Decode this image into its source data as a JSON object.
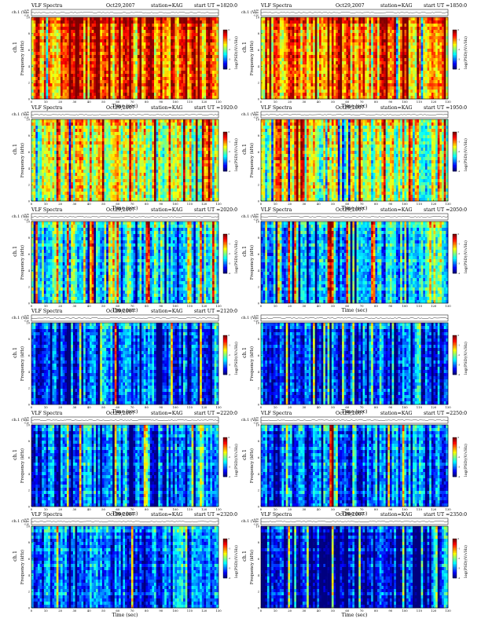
{
  "chart_data": [
    {
      "type": "heatmap",
      "title": "VLF Spectra",
      "date": "Oct29,2007",
      "station": "station=KAG",
      "start": "start  UT  =1820:0",
      "xlabel": "Time  (sec)",
      "ylabel": "Frequency  (kHz)",
      "top_ylabel": "ch.1 (V)",
      "top_ticks": [
        "0.30",
        "0.00",
        "-0.30"
      ],
      "side_label": "ch.1",
      "cbar_label": "log(PSD)(V/√Hz)",
      "xlim": [
        0,
        130
      ],
      "ylim": [
        0,
        10
      ],
      "xticks": [
        0,
        10,
        20,
        30,
        40,
        50,
        60,
        70,
        80,
        90,
        100,
        110,
        120,
        130
      ],
      "yticks": [
        0,
        2,
        4,
        6,
        8,
        10
      ],
      "cbar_ticks": [
        "0",
        "-1",
        "-2",
        "-3",
        "-4"
      ],
      "intensity": 0.78,
      "band_contrast": 0.45,
      "spikes": [
        [
          0.02,
          0.6
        ],
        [
          0.35,
          0.8
        ],
        [
          0.58,
          0.7
        ],
        [
          0.75,
          0.6
        ]
      ],
      "seed": 3
    },
    {
      "type": "heatmap",
      "title": "VLF Spectra",
      "date": "Oct29,2007",
      "station": "station=KAG",
      "start": "start  UT  =1850:0",
      "xlabel": "Time  (sec)",
      "ylabel": "Frequency  (kHz)",
      "top_ylabel": "ch.1 (V)",
      "top_ticks": [
        "0.30",
        "0.00",
        "-0.30"
      ],
      "side_label": "ch.1",
      "cbar_label": "log(PSD)(V/√Hz)",
      "xlim": [
        0,
        130
      ],
      "ylim": [
        0,
        10
      ],
      "xticks": [
        0,
        10,
        20,
        30,
        40,
        50,
        60,
        70,
        80,
        90,
        100,
        110,
        120,
        130
      ],
      "yticks": [
        0,
        2,
        4,
        6,
        8,
        10
      ],
      "cbar_ticks": [
        "0",
        "-1",
        "-2",
        "-3",
        "-4"
      ],
      "intensity": 0.74,
      "band_contrast": 0.45,
      "spikes": [
        [
          0.02,
          0.6
        ],
        [
          0.4,
          0.5
        ],
        [
          0.6,
          0.4
        ]
      ],
      "seed": 7
    },
    {
      "type": "heatmap",
      "title": "VLF Spectra",
      "date": "Oct29,2007",
      "station": "station=KAG",
      "start": "start  UT  =1920:0",
      "xlabel": "Time  (sec)",
      "ylabel": "Frequency  (kHz)",
      "top_ylabel": "ch.1 (V)",
      "top_ticks": [
        "0.30",
        "0.00",
        "-0.30"
      ],
      "side_label": "ch.1",
      "cbar_label": "log(PSD)(V/√Hz)",
      "xlim": [
        0,
        130
      ],
      "ylim": [
        0,
        10
      ],
      "xticks": [
        0,
        10,
        20,
        30,
        40,
        50,
        60,
        70,
        80,
        90,
        100,
        110,
        120,
        130
      ],
      "yticks": [
        0,
        2,
        4,
        6,
        8,
        10
      ],
      "cbar_ticks": [
        "0",
        "-1",
        "-2",
        "-3",
        "-4"
      ],
      "intensity": 0.58,
      "band_contrast": 0.5,
      "spikes": [
        [
          0.18,
          0.5
        ],
        [
          0.46,
          0.4
        ]
      ],
      "seed": 11
    },
    {
      "type": "heatmap",
      "title": "VLF Spectra",
      "date": "Oct29,2007",
      "station": "station=KAG",
      "start": "start  UT  =1950:0",
      "xlabel": "Time  (sec)",
      "ylabel": "Frequency  (kHz)",
      "top_ylabel": "ch.1 (V)",
      "top_ticks": [
        "0.30",
        "0.00",
        "-0.30"
      ],
      "side_label": "ch.1",
      "cbar_label": "log(PSD)(V/√Hz)",
      "xlim": [
        0,
        130
      ],
      "ylim": [
        0,
        10
      ],
      "xticks": [
        0,
        10,
        20,
        30,
        40,
        50,
        60,
        70,
        80,
        90,
        100,
        110,
        120,
        130
      ],
      "yticks": [
        0,
        2,
        4,
        6,
        8,
        10
      ],
      "cbar_ticks": [
        "0",
        "-1",
        "-2",
        "-3",
        "-4"
      ],
      "intensity": 0.56,
      "band_contrast": 0.5,
      "spikes": [
        [
          0.22,
          0.5
        ],
        [
          0.78,
          0.4
        ]
      ],
      "seed": 13
    },
    {
      "type": "heatmap",
      "title": "VLF Spectra",
      "date": "Oct29,2007",
      "station": "station=KAG",
      "start": "start  UT  =2020:0",
      "xlabel": "Time  (sec)",
      "ylabel": "Frequency  (kHz)",
      "top_ylabel": "ch.1 (V)",
      "top_ticks": [
        "0.30",
        "0.00",
        "-0.30"
      ],
      "side_label": "ch.1",
      "cbar_label": "log(PSD)(V/√Hz)",
      "xlim": [
        0,
        130
      ],
      "ylim": [
        0,
        10
      ],
      "xticks": [
        0,
        10,
        20,
        30,
        40,
        50,
        60,
        70,
        80,
        90,
        100,
        110,
        120,
        130
      ],
      "yticks": [
        0,
        2,
        4,
        6,
        8,
        10
      ],
      "cbar_ticks": [
        "0",
        "-1",
        "-2",
        "-3",
        "-4"
      ],
      "intensity": 0.38,
      "band_contrast": 0.55,
      "spikes": [
        [
          0.31,
          0.5
        ],
        [
          0.62,
          0.9
        ],
        [
          0.84,
          0.5
        ]
      ],
      "seed": 17
    },
    {
      "type": "heatmap",
      "title": "VLF Spectra",
      "date": "Oct29,2007",
      "station": "station=KAG",
      "start": "start  UT  =2050:0",
      "xlabel": "Time  (sec)",
      "ylabel": "Frequency  (kHz)",
      "top_ylabel": "ch.1 (V)",
      "top_ticks": [
        "0.30",
        "0.00",
        "-0.30"
      ],
      "side_label": "ch.1",
      "cbar_label": "log(PSD)(V/√Hz)",
      "xlim": [
        0,
        130
      ],
      "ylim": [
        0,
        10
      ],
      "xticks": [
        0,
        10,
        20,
        30,
        40,
        50,
        60,
        70,
        80,
        90,
        100,
        110,
        120,
        130
      ],
      "yticks": [
        0,
        2,
        4,
        6,
        8,
        10
      ],
      "cbar_ticks": [
        "0",
        "-1",
        "-2",
        "-3",
        "-4"
      ],
      "intensity": 0.36,
      "band_contrast": 0.55,
      "spikes": [
        [
          0.36,
          1.0
        ],
        [
          0.66,
          0.4
        ]
      ],
      "seed": 19
    },
    {
      "type": "heatmap",
      "title": "VLF Spectra",
      "date": "Oct29,2007",
      "station": "station=KAG",
      "start": "start  UT  =2120:0",
      "xlabel": "Time  (sec)",
      "ylabel": "Frequency  (kHz)",
      "top_ylabel": "ch.1 (V)",
      "top_ticks": [
        "0.30",
        "0.00",
        "-0.30"
      ],
      "side_label": "ch.1",
      "cbar_label": "log(PSD)(V/√Hz)",
      "xlim": [
        0,
        130
      ],
      "ylim": [
        0,
        10
      ],
      "xticks": [
        0,
        10,
        20,
        30,
        40,
        50,
        60,
        70,
        80,
        90,
        100,
        110,
        120,
        130
      ],
      "yticks": [
        0,
        2,
        4,
        6,
        8,
        10
      ],
      "cbar_ticks": [
        "0",
        "-1",
        "-2",
        "-3",
        "-4"
      ],
      "intensity": 0.22,
      "band_contrast": 0.4,
      "spikes": [],
      "seed": 23
    },
    {
      "type": "heatmap",
      "title": "",
      "date": "",
      "station": "",
      "start": "",
      "xlabel": "Time  (sec)",
      "ylabel": "Frequency  (kHz)",
      "top_ylabel": "ch.1 (V)",
      "top_ticks": [
        "0.30",
        "0.00",
        "-0.30"
      ],
      "side_label": "ch.1",
      "cbar_label": "log(PSD)(V/√Hz)",
      "xlim": [
        0,
        130
      ],
      "ylim": [
        0,
        10
      ],
      "xticks": [
        0,
        10,
        20,
        30,
        40,
        50,
        60,
        70,
        80,
        90,
        100,
        110,
        120,
        130
      ],
      "yticks": [
        0,
        2,
        4,
        6,
        8,
        10
      ],
      "cbar_ticks": [
        "0",
        "-1",
        "-2",
        "-3",
        "-4"
      ],
      "intensity": 0.18,
      "band_contrast": 0.4,
      "spikes": [],
      "seed": 29
    },
    {
      "type": "heatmap",
      "title": "VLF Spectra",
      "date": "Oct29,2007",
      "station": "station=KAG",
      "start": "start  UT  =2220:0",
      "xlabel": "Time  (sec)",
      "ylabel": "Frequency  (kHz)",
      "top_ylabel": "ch.1 (V)",
      "top_ticks": [
        "0.30",
        "0.00",
        "-0.30"
      ],
      "side_label": "ch.1",
      "cbar_label": "log(PSD)(V/√Hz)",
      "xlim": [
        0,
        130
      ],
      "ylim": [
        0,
        10
      ],
      "xticks": [
        0,
        10,
        20,
        30,
        40,
        50,
        60,
        70,
        80,
        90,
        100,
        110,
        120,
        130
      ],
      "yticks": [
        0,
        2,
        4,
        6,
        8,
        10
      ],
      "cbar_ticks": [
        "0",
        "-1",
        "-2",
        "-3",
        "-4"
      ],
      "intensity": 0.2,
      "band_contrast": 0.6,
      "spikes": [],
      "seed": 31
    },
    {
      "type": "heatmap",
      "title": "VLF Spectra",
      "date": "Oct29,2007",
      "station": "station=KAG",
      "start": "start  UT  =2250:0",
      "xlabel": "Time  (sec)",
      "ylabel": "Frequency  (kHz)",
      "top_ylabel": "ch.1 (V)",
      "top_ticks": [
        "0.30",
        "0.00",
        "-0.30"
      ],
      "side_label": "ch.1",
      "cbar_label": "log(PSD)(V/√Hz)",
      "xlim": [
        0,
        130
      ],
      "ylim": [
        0,
        10
      ],
      "xticks": [
        0,
        10,
        20,
        30,
        40,
        50,
        60,
        70,
        80,
        90,
        100,
        110,
        120,
        130
      ],
      "yticks": [
        0,
        2,
        4,
        6,
        8,
        10
      ],
      "cbar_ticks": [
        "0",
        "-1",
        "-2",
        "-3",
        "-4"
      ],
      "intensity": 0.22,
      "band_contrast": 0.6,
      "spikes": [
        [
          0.37,
          1.0
        ]
      ],
      "seed": 37
    },
    {
      "type": "heatmap",
      "title": "VLF Spectra",
      "date": "Oct29,2007",
      "station": "station=KAG",
      "start": "start  UT  =2320:0",
      "xlabel": "Time  (sec)",
      "ylabel": "Frequency  (kHz)",
      "top_ylabel": "ch.1 (V)",
      "top_ticks": [
        "0.30",
        "0.00",
        "-0.30"
      ],
      "side_label": "ch.1",
      "cbar_label": "log(PSD)(V/√Hz)",
      "xlim": [
        0,
        130
      ],
      "ylim": [
        0,
        10
      ],
      "xticks": [
        0,
        10,
        20,
        30,
        40,
        50,
        60,
        70,
        80,
        90,
        100,
        110,
        120,
        130
      ],
      "yticks": [
        0,
        2,
        4,
        6,
        8,
        10
      ],
      "cbar_ticks": [
        "0",
        "-1",
        "-2",
        "-3",
        "-4"
      ],
      "intensity": 0.2,
      "band_contrast": 0.55,
      "spikes": [],
      "seed": 41
    },
    {
      "type": "heatmap",
      "title": "VLF Spectra",
      "date": "Oct29,2007",
      "station": "station=KAG",
      "start": "start  UT  =2350:0",
      "xlabel": "Time  (sec)",
      "ylabel": "Frequency  (kHz)",
      "top_ylabel": "ch.1 (V)",
      "top_ticks": [
        "0.30",
        "0.00",
        "-0.30"
      ],
      "side_label": "ch.1",
      "cbar_label": "log(PSD)(V/√Hz)",
      "xlim": [
        0,
        130
      ],
      "ylim": [
        0,
        10
      ],
      "xticks": [
        0,
        10,
        20,
        30,
        40,
        50,
        60,
        70,
        80,
        90,
        100,
        110,
        120,
        130
      ],
      "yticks": [
        0,
        2,
        4,
        6,
        8,
        10
      ],
      "cbar_ticks": [
        "0",
        "-1",
        "-2",
        "-3",
        "-4"
      ],
      "intensity": 0.1,
      "band_contrast": 0.7,
      "spikes": [],
      "seed": 43
    }
  ]
}
